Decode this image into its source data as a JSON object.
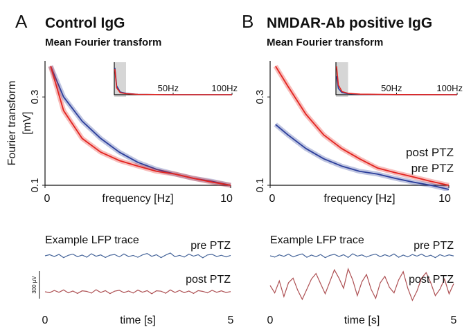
{
  "chart_data": [
    {
      "type": "line",
      "panel": "A",
      "title": "Control IgG",
      "subtitle": "Mean Fourier transform",
      "ylabel": [
        "Fourier transform",
        "[mV]"
      ],
      "xlabel": "frequency [Hz]",
      "x": [
        0.3,
        1,
        2,
        3,
        4,
        5,
        6,
        7,
        8,
        9,
        10
      ],
      "series": [
        {
          "name": "pre PTZ",
          "color": "#2b3e9b",
          "values": [
            0.44,
            0.3,
            0.222,
            0.179,
            0.151,
            0.133,
            0.122,
            0.115,
            0.109,
            0.105,
            0.1
          ]
        },
        {
          "name": "post PTZ",
          "color": "#e3231f",
          "values": [
            0.44,
            0.253,
            0.179,
            0.151,
            0.136,
            0.127,
            0.119,
            0.115,
            0.109,
            0.104,
            0.1
          ]
        }
      ],
      "log_y": true,
      "legend": false,
      "xlim": [
        0,
        10
      ],
      "xticks": [
        0,
        10
      ],
      "ylim": [
        0.1,
        0.47
      ],
      "yticks": [
        0.1,
        0.3
      ],
      "inset": {
        "xlim": [
          0,
          100
        ],
        "ylim": [
          0,
          0.5
        ],
        "highlight": [
          0,
          10
        ],
        "xticks": [
          {
            "value": 50,
            "label": "50Hz"
          },
          {
            "value": 100,
            "label": "100Hz"
          }
        ],
        "x": [
          0.5,
          2,
          5,
          10,
          20,
          50,
          100
        ],
        "series": [
          {
            "color": "#2b3e9b",
            "values": [
              0.42,
              0.16,
              0.07,
              0.05,
              0.035,
              0.03,
              0.03
            ]
          },
          {
            "color": "#e3231f",
            "values": [
              0.4,
              0.13,
              0.06,
              0.045,
              0.035,
              0.03,
              0.03
            ]
          }
        ]
      }
    },
    {
      "type": "line",
      "title": "Example LFP trace",
      "xlabel": "time [s]",
      "x": [
        0,
        0.125,
        0.25,
        0.375,
        0.5,
        0.625,
        0.75,
        0.875,
        1,
        1.125,
        1.25,
        1.375,
        1.5,
        1.625,
        1.75,
        1.875,
        2,
        2.125,
        2.25,
        2.375,
        2.5,
        2.625,
        2.75,
        2.875,
        3,
        3.125,
        3.25,
        3.375,
        3.5,
        3.625,
        3.75,
        3.875,
        4,
        4.125,
        4.25,
        4.375,
        4.5,
        4.625,
        4.75,
        4.875,
        5
      ],
      "series": [
        {
          "name": "pre PTZ",
          "color": "#46659a",
          "values": [
            0,
            12,
            -8,
            15,
            -20,
            5,
            18,
            -10,
            8,
            -15,
            22,
            -5,
            10,
            -18,
            6,
            14,
            -12,
            20,
            -8,
            4,
            -16,
            10,
            25,
            -6,
            12,
            -20,
            8,
            30,
            -10,
            5,
            -14,
            18,
            -4,
            12,
            -22,
            9,
            16,
            -8,
            6,
            -12,
            4
          ]
        },
        {
          "name": "post PTZ",
          "color": "#ad4f52",
          "values": [
            0,
            -10,
            14,
            -6,
            20,
            -12,
            8,
            -18,
            10,
            4,
            -15,
            22,
            -8,
            12,
            -20,
            6,
            16,
            -10,
            8,
            -14,
            18,
            -5,
            12,
            -22,
            10,
            6,
            -16,
            20,
            -8,
            14,
            -10,
            8,
            -18,
            12,
            4,
            -12,
            16,
            -6,
            10,
            -8,
            2
          ]
        }
      ],
      "xlim": [
        0,
        5
      ],
      "xticks": [
        0,
        5
      ],
      "scalebar": {
        "value": 300,
        "label": "300 µV"
      }
    },
    {
      "type": "line",
      "panel": "B",
      "title": "NMDAR-Ab positive IgG",
      "subtitle": "Mean Fourier transform",
      "xlabel": "frequency [Hz]",
      "x": [
        0.3,
        1,
        2,
        3,
        4,
        5,
        6,
        7,
        8,
        9,
        10
      ],
      "series": [
        {
          "name": "post PTZ",
          "color": "#e3231f",
          "values": [
            0.44,
            0.342,
            0.242,
            0.187,
            0.158,
            0.139,
            0.124,
            0.117,
            0.111,
            0.105,
            0.1
          ]
        },
        {
          "name": "pre PTZ",
          "color": "#2b3e9b",
          "values": [
            0.213,
            0.187,
            0.158,
            0.139,
            0.127,
            0.119,
            0.115,
            0.109,
            0.104,
            0.1,
            0.095
          ]
        }
      ],
      "log_y": true,
      "legend": true,
      "xlim": [
        0,
        10
      ],
      "xticks": [
        0,
        10
      ],
      "ylim": [
        0.1,
        0.47
      ],
      "yticks": [
        0.1,
        0.3
      ],
      "inset": {
        "xlim": [
          0,
          100
        ],
        "ylim": [
          0,
          0.5
        ],
        "highlight": [
          0,
          10
        ],
        "xticks": [
          {
            "value": 50,
            "label": "50Hz"
          },
          {
            "value": 100,
            "label": "100Hz"
          }
        ],
        "x": [
          0.5,
          2,
          5,
          10,
          20,
          50,
          100
        ],
        "series": [
          {
            "color": "#2b3e9b",
            "values": [
              0.3,
              0.12,
              0.06,
              0.045,
              0.035,
              0.03,
              0.03
            ]
          },
          {
            "color": "#e3231f",
            "values": [
              0.44,
              0.17,
              0.075,
              0.05,
              0.038,
              0.032,
              0.03
            ]
          }
        ]
      }
    },
    {
      "type": "line",
      "title": "Example LFP trace",
      "xlabel": "time [s]",
      "x": [
        0,
        0.125,
        0.25,
        0.375,
        0.5,
        0.625,
        0.75,
        0.875,
        1,
        1.125,
        1.25,
        1.375,
        1.5,
        1.625,
        1.75,
        1.875,
        2,
        2.125,
        2.25,
        2.375,
        2.5,
        2.625,
        2.75,
        2.875,
        3,
        3.125,
        3.25,
        3.375,
        3.5,
        3.625,
        3.75,
        3.875,
        4,
        4.125,
        4.25,
        4.375,
        4.5,
        4.625,
        4.75,
        4.875,
        5
      ],
      "series": [
        {
          "name": "pre PTZ",
          "color": "#46659a",
          "values": [
            0,
            -14,
            10,
            -6,
            18,
            -12,
            6,
            20,
            -16,
            8,
            -10,
            14,
            -20,
            4,
            16,
            -8,
            12,
            -18,
            22,
            -4,
            10,
            -14,
            6,
            18,
            -10,
            12,
            -6,
            20,
            -16,
            8,
            -12,
            14,
            -4,
            18,
            -10,
            6,
            -20,
            12,
            -6,
            10,
            -2
          ]
        },
        {
          "name": "post PTZ",
          "color": "#ad4f52",
          "values": [
            0,
            -80,
            50,
            -120,
            30,
            80,
            -50,
            -150,
            -40,
            70,
            130,
            20,
            -90,
            40,
            170,
            80,
            -30,
            180,
            60,
            -110,
            40,
            120,
            -40,
            -140,
            30,
            100,
            -20,
            -80,
            60,
            150,
            -30,
            -160,
            -60,
            80,
            140,
            30,
            -110,
            -40,
            70,
            -90,
            20
          ]
        }
      ],
      "xlim": [
        0,
        5
      ],
      "xticks": [
        0,
        5
      ]
    }
  ]
}
